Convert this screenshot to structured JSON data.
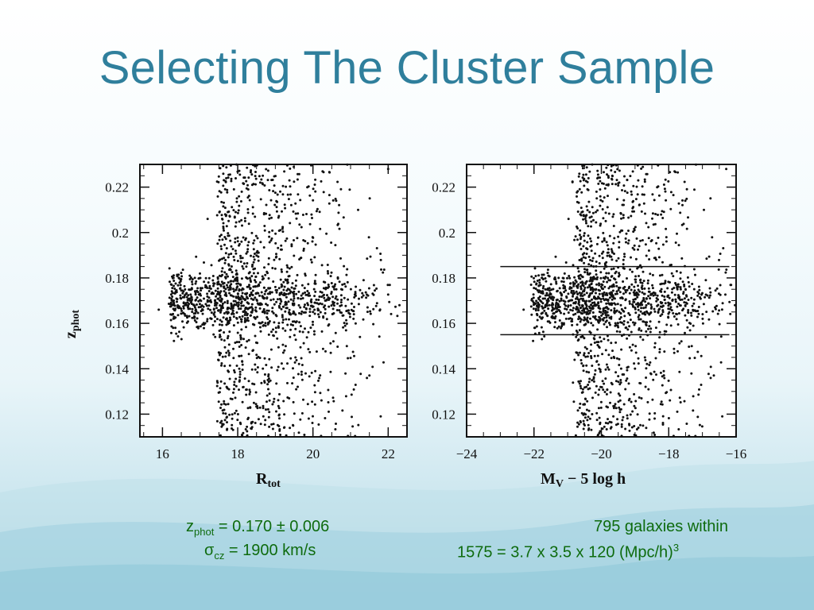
{
  "slide": {
    "title": "Selecting The Cluster Sample"
  },
  "notes": {
    "left_line1_pre": "z",
    "left_line1_sub": "phot",
    "left_line1_post": " = 0.170 ± 0.006",
    "left_line2_pre": "σ",
    "left_line2_sub": "cz",
    "left_line2_post": " = 1900 km/s",
    "right_line1": "795 galaxies within",
    "right_line2_pre": "1575 = 3.7 x 3.5 x 120 (Mpc/h)",
    "right_line2_sup": "3"
  },
  "colors": {
    "title": "#2f7f9c",
    "notes": "#0e6b0e",
    "points": "#111111"
  },
  "chart_data": [
    {
      "type": "scatter",
      "title": "",
      "xlabel_main": "R",
      "xlabel_sub": "tot",
      "ylabel_main": "z",
      "ylabel_sub": "phot",
      "xlim": [
        15.4,
        22.5
      ],
      "ylim": [
        0.11,
        0.23
      ],
      "xticks": [
        16,
        18,
        20,
        22
      ],
      "xtick_labels": [
        "16",
        "18",
        "20",
        "22"
      ],
      "yticks": [
        0.12,
        0.14,
        0.16,
        0.18,
        0.2,
        0.22
      ],
      "ytick_labels": [
        "0.12",
        "0.14",
        "0.16",
        "0.18",
        "0.2",
        "0.22"
      ],
      "grid": false,
      "cluster": {
        "z_center": 0.17,
        "z_sigma": 0.006,
        "n_points": 795
      },
      "field_points_approx": 900,
      "points_sample": [
        [
          15.9,
          0.166
        ],
        [
          16.3,
          0.17
        ],
        [
          16.6,
          0.168
        ],
        [
          17.0,
          0.173
        ],
        [
          17.2,
          0.206
        ],
        [
          17.3,
          0.162
        ],
        [
          17.9,
          0.219
        ],
        [
          18.1,
          0.196
        ],
        [
          18.2,
          0.173
        ],
        [
          18.6,
          0.222
        ],
        [
          19.0,
          0.176
        ],
        [
          19.5,
          0.171
        ],
        [
          20.0,
          0.165
        ],
        [
          20.4,
          0.182
        ],
        [
          20.9,
          0.15
        ],
        [
          21.2,
          0.21
        ],
        [
          21.5,
          0.137
        ],
        [
          21.8,
          0.119
        ],
        [
          22.0,
          0.228
        ],
        [
          22.3,
          0.168
        ]
      ]
    },
    {
      "type": "scatter",
      "title": "",
      "xlabel_main": "M",
      "xlabel_sub": "V",
      "xlabel_rest": " − 5 log h",
      "xlim": [
        -24,
        -16
      ],
      "ylim": [
        0.11,
        0.23
      ],
      "xticks": [
        -24,
        -22,
        -20,
        -18,
        -16
      ],
      "xtick_labels": [
        "−24",
        "−22",
        "−20",
        "−18",
        "−16"
      ],
      "yticks": [
        0.12,
        0.14,
        0.16,
        0.18,
        0.2,
        0.22
      ],
      "ytick_labels": [
        "0.12",
        "0.14",
        "0.16",
        "0.18",
        "0.2",
        "0.22"
      ],
      "grid": false,
      "selection_lines": [
        {
          "z": 0.185,
          "x_from": -23.0,
          "x_to": -16.2
        },
        {
          "z": 0.155,
          "x_from": -23.0,
          "x_to": -16.2
        }
      ],
      "cluster": {
        "z_center": 0.17,
        "z_sigma": 0.006,
        "n_points": 795
      },
      "field_points_approx": 900,
      "points_sample": [
        [
          -22.9,
          0.166
        ],
        [
          -22.4,
          0.17
        ],
        [
          -22.0,
          0.206
        ],
        [
          -21.7,
          0.163
        ],
        [
          -21.2,
          0.219
        ],
        [
          -20.8,
          0.196
        ],
        [
          -20.4,
          0.173
        ],
        [
          -20.1,
          0.222
        ],
        [
          -19.7,
          0.176
        ],
        [
          -19.2,
          0.171
        ],
        [
          -18.9,
          0.165
        ],
        [
          -18.4,
          0.182
        ],
        [
          -18.1,
          0.15
        ],
        [
          -17.6,
          0.21
        ],
        [
          -17.3,
          0.137
        ],
        [
          -17.0,
          0.119
        ],
        [
          -16.7,
          0.228
        ],
        [
          -16.4,
          0.168
        ]
      ]
    }
  ]
}
